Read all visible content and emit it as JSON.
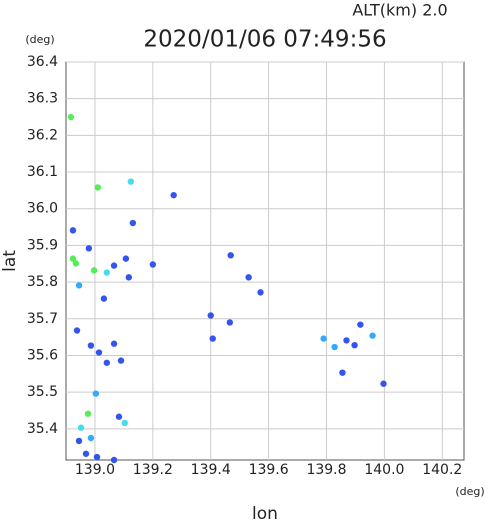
{
  "chart_data": {
    "type": "scatter",
    "title": "2020/01/06 07:49:56",
    "subtitle": "ALT(km)  2.0",
    "y_unit": "(deg)",
    "x_unit": "(deg)",
    "xlabel": "lon",
    "ylabel": "lat",
    "xlim": [
      138.9,
      140.275
    ],
    "ylim": [
      35.315,
      36.4
    ],
    "xticks": [
      {
        "value": 139,
        "label": "139.0"
      },
      139.2,
      139.4,
      139.6,
      139.8,
      {
        "value": 140,
        "label": "140.0"
      },
      140.2
    ],
    "yticks": [
      36.4,
      36.3,
      36.2,
      36.1,
      {
        "value": 36,
        "label": "36.0"
      },
      35.9,
      35.8,
      35.7,
      35.6,
      35.5,
      35.4
    ],
    "x": [
      138.917,
      139.01,
      139.124,
      139.272,
      139.131,
      138.924,
      138.979,
      138.924,
      138.934,
      138.997,
      139.041,
      139.066,
      139.107,
      139.2,
      139.117,
      138.945,
      139.031,
      139.469,
      139.531,
      139.572,
      139.4,
      139.466,
      139.407,
      138.938,
      138.986,
      139.066,
      139.014,
      139.041,
      139.09,
      139.79,
      139.869,
      139.959,
      139.917,
      139.855,
      139.997,
      139.003,
      138.976,
      139.083,
      139.103,
      138.952,
      138.945,
      138.986,
      138.969,
      139.007,
      139.066,
      139.828,
      139.897
    ],
    "values": [
      36.25,
      36.058,
      36.074,
      36.037,
      35.961,
      35.941,
      35.892,
      35.864,
      35.851,
      35.832,
      35.826,
      35.845,
      35.864,
      35.848,
      35.813,
      35.791,
      35.755,
      35.873,
      35.813,
      35.772,
      35.709,
      35.69,
      35.646,
      35.668,
      35.627,
      35.632,
      35.608,
      35.58,
      35.586,
      35.646,
      35.641,
      35.654,
      35.684,
      35.553,
      35.523,
      35.496,
      35.441,
      35.433,
      35.416,
      35.403,
      35.367,
      35.375,
      35.332,
      35.323,
      35.315,
      35.623,
      35.628
    ],
    "point_colors": [
      "#55ee55",
      "#55ee55",
      "#44ddee",
      "#3355ee",
      "#3355ee",
      "#3355ee",
      "#3355ee",
      "#55ee55",
      "#55ee55",
      "#55ee55",
      "#44ddee",
      "#3355ee",
      "#3355ee",
      "#3355ee",
      "#3355ee",
      "#33aaff",
      "#3355ee",
      "#3355ee",
      "#3355ee",
      "#3355ee",
      "#3355ee",
      "#3355ee",
      "#3355ee",
      "#3355ee",
      "#3355ee",
      "#3355ee",
      "#3355ee",
      "#3355ee",
      "#3355ee",
      "#33aaff",
      "#3355ee",
      "#33aaff",
      "#3355ee",
      "#3355ee",
      "#3355ee",
      "#33aaff",
      "#55ee55",
      "#3355ee",
      "#44ddee",
      "#44ddee",
      "#3355ee",
      "#33aaff",
      "#3355ee",
      "#3355ee",
      "#3355ee",
      "#33aaff",
      "#3355ee"
    ],
    "grid": true
  }
}
